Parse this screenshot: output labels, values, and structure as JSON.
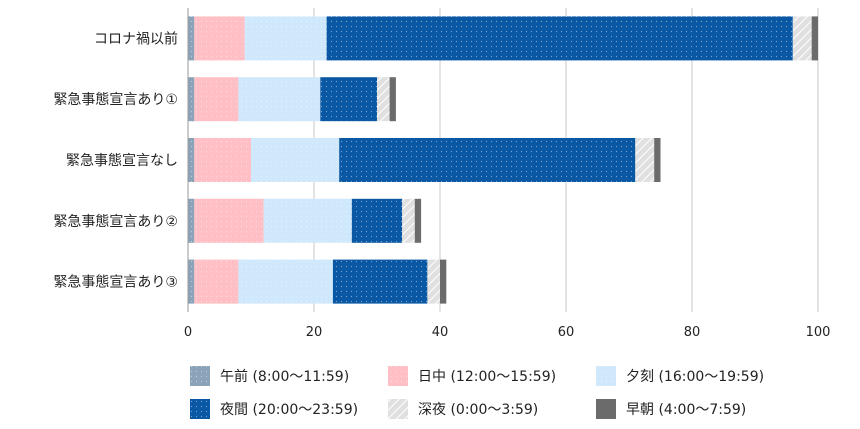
{
  "chart_data": {
    "type": "bar",
    "orientation": "horizontal",
    "stacked": true,
    "categories": [
      "コロナ禍以前",
      "緊急事態宣言あり①",
      "緊急事態宣言なし",
      "緊急事態宣言あり②",
      "緊急事態宣言あり③"
    ],
    "series": [
      {
        "name": "午前 (8:00〜11:59)",
        "color": "#8aa3b8",
        "hatch": "dots",
        "values": [
          1,
          1,
          1,
          1,
          1
        ]
      },
      {
        "name": "日中 (12:00〜15:59)",
        "color": "#ffbfc4",
        "hatch": "dots",
        "values": [
          8,
          7,
          9,
          11,
          7
        ]
      },
      {
        "name": "夕刻 (16:00〜19:59)",
        "color": "#cfe8fc",
        "hatch": "dots",
        "values": [
          13,
          13,
          14,
          14,
          15
        ]
      },
      {
        "name": "夜間 (20:00〜23:59)",
        "color": "#0a58a3",
        "hatch": "dots",
        "values": [
          74,
          9,
          47,
          8,
          15
        ]
      },
      {
        "name": "深夜 (0:00〜3:59)",
        "color": "#e0e0e0",
        "hatch": "stripe",
        "values": [
          3,
          2,
          3,
          2,
          2
        ]
      },
      {
        "name": "早朝 (4:00〜7:59)",
        "color": "#6b6b6b",
        "hatch": "none",
        "values": [
          1,
          1,
          1,
          1,
          1
        ]
      }
    ],
    "xlim": [
      0,
      100
    ],
    "xticks": [
      0,
      20,
      40,
      60,
      80,
      100
    ],
    "grid": true,
    "legend_position": "bottom"
  }
}
